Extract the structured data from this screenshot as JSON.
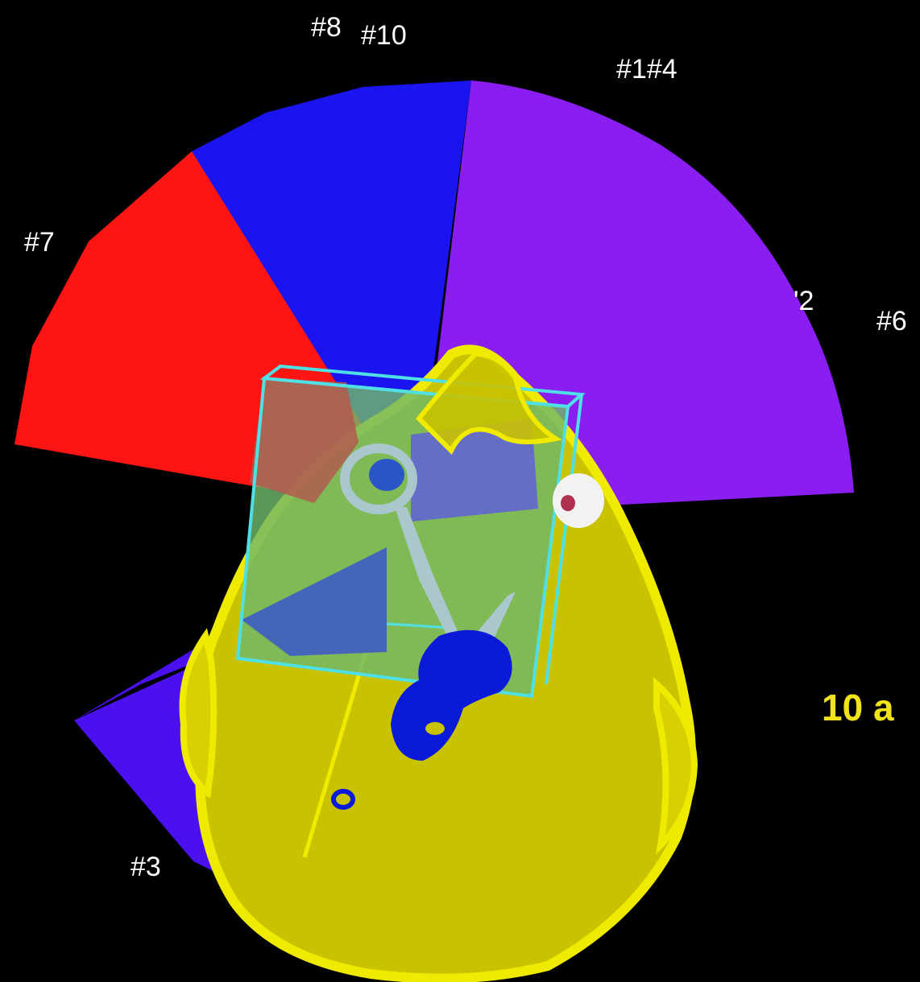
{
  "beam_labels": {
    "b8": "#8",
    "b10": "#10",
    "b1_4": "#1#4",
    "b7": "#7",
    "b2": "'2",
    "b6": "#6",
    "b3": "#3"
  },
  "caption": "10 a",
  "colors": {
    "background": "#000000",
    "beam_red": "#ff1414",
    "beam_blue": "#1a14f0",
    "beam_violet": "#8a1ef0",
    "beam_indigo": "#4a10f0",
    "head": "#c9c200",
    "head_edge": "#f0ea00",
    "target_box": "#6fb86a",
    "box_edge": "#4fe0e6",
    "organ_blue": "#0a1ad8",
    "organ_white": "#f2f2f2",
    "instrument": "#a9c7cc",
    "caption": "#f2e21a"
  }
}
